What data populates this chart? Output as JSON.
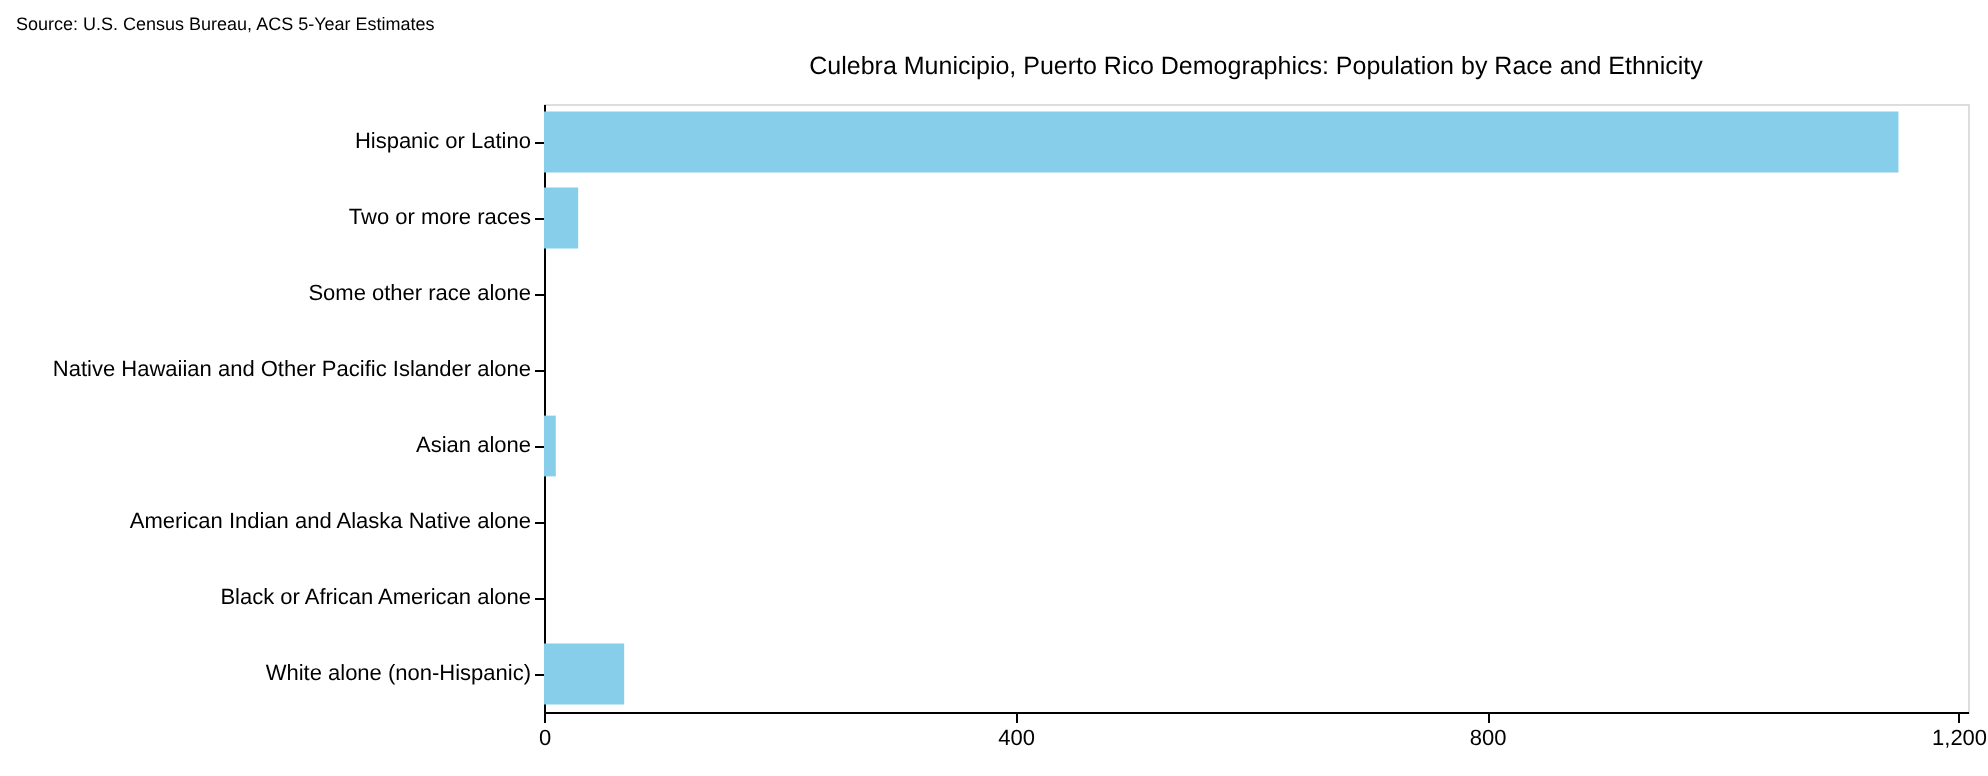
{
  "chart_data": {
    "type": "bar",
    "orientation": "horizontal",
    "title": "Culebra Municipio, Puerto Rico Demographics: Population by Race and Ethnicity",
    "annotations": [
      "Source: U.S. Census Bureau, ACS 5-Year Estimates"
    ],
    "categories": [
      "Hispanic or Latino",
      "Two or more races",
      "Some other race alone",
      "Native Hawaiian and Other Pacific Islander alone",
      "Asian alone",
      "American Indian and Alaska Native alone",
      "Black or African American alone",
      "White alone (non-Hispanic)"
    ],
    "values": [
      1149,
      29,
      0,
      0,
      10,
      0,
      0,
      68
    ],
    "color": "#87ceeb",
    "xlim": [
      0,
      1208
    ],
    "xticks": [
      0,
      400,
      800,
      {
        "value": 1200,
        "label": "1,200"
      }
    ],
    "grid": false
  }
}
